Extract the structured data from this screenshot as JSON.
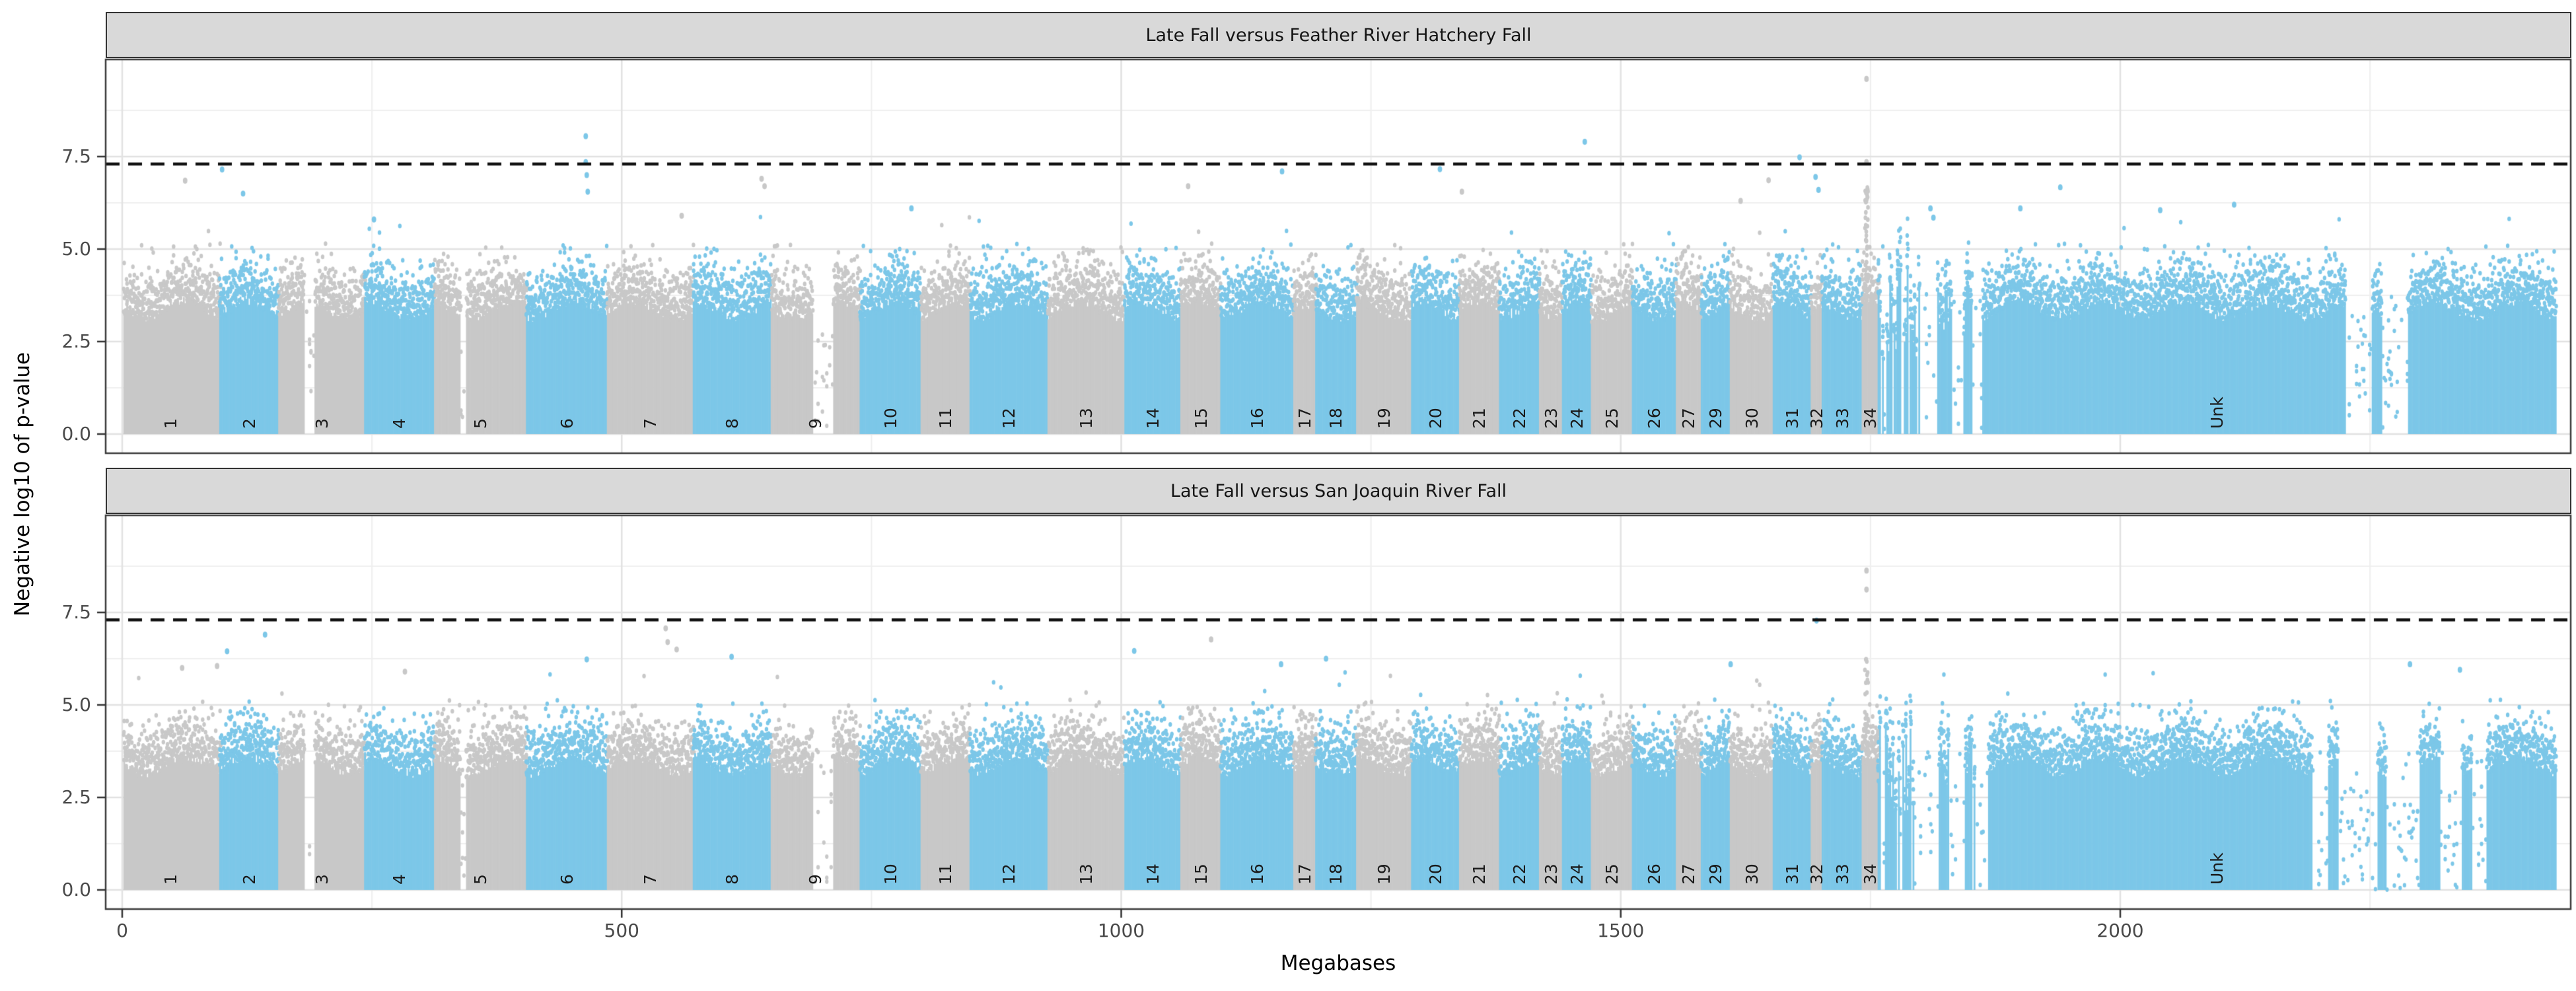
{
  "figure": {
    "y_axis": {
      "label": "Negative log10 of p-value",
      "ticks": [
        "0.0",
        "2.5",
        "5.0",
        "7.5"
      ],
      "tick_values": [
        0,
        2.5,
        5,
        7.5
      ]
    },
    "x_axis": {
      "label": "Megabases",
      "ticks": [
        "0",
        "500",
        "1000",
        "1500",
        "2000"
      ],
      "tick_values": [
        0,
        500,
        1000,
        1500,
        2000
      ],
      "minor_tick_values": [
        250,
        750,
        1250,
        1750,
        2250
      ]
    }
  },
  "chart_data": {
    "type": "scatter",
    "subtype": "manhattan",
    "x_unit": "Mb",
    "x_range": [
      0,
      2436
    ],
    "y_range": [
      0,
      9.7
    ],
    "grid": "on",
    "threshold_line": {
      "value": 7.3,
      "style": "dashed",
      "color": "#111111"
    },
    "point_colors": {
      "gray": "#c8c8c8",
      "blue": "#7cc7e8"
    },
    "chromosomes": [
      {
        "label": "1",
        "start": 0,
        "end": 98,
        "color": "gray"
      },
      {
        "label": "2",
        "start": 98,
        "end": 157,
        "color": "blue"
      },
      {
        "label": "3",
        "start": 157,
        "end": 243,
        "color": "gray"
      },
      {
        "label": "4",
        "start": 243,
        "end": 313,
        "color": "blue"
      },
      {
        "label": "5",
        "start": 313,
        "end": 405,
        "color": "gray"
      },
      {
        "label": "6",
        "start": 405,
        "end": 486,
        "color": "blue"
      },
      {
        "label": "7",
        "start": 486,
        "end": 572,
        "color": "gray"
      },
      {
        "label": "8",
        "start": 572,
        "end": 650,
        "color": "blue"
      },
      {
        "label": "9",
        "start": 650,
        "end": 739,
        "color": "gray"
      },
      {
        "label": "10",
        "start": 739,
        "end": 800,
        "color": "blue"
      },
      {
        "label": "11",
        "start": 800,
        "end": 849,
        "color": "gray"
      },
      {
        "label": "12",
        "start": 849,
        "end": 927,
        "color": "blue"
      },
      {
        "label": "13",
        "start": 927,
        "end": 1004,
        "color": "gray"
      },
      {
        "label": "14",
        "start": 1004,
        "end": 1060,
        "color": "blue"
      },
      {
        "label": "15",
        "start": 1060,
        "end": 1100,
        "color": "gray"
      },
      {
        "label": "16",
        "start": 1100,
        "end": 1173,
        "color": "blue"
      },
      {
        "label": "17",
        "start": 1173,
        "end": 1195,
        "color": "gray"
      },
      {
        "label": "18",
        "start": 1195,
        "end": 1236,
        "color": "blue"
      },
      {
        "label": "19",
        "start": 1236,
        "end": 1291,
        "color": "gray"
      },
      {
        "label": "20",
        "start": 1291,
        "end": 1339,
        "color": "blue"
      },
      {
        "label": "21",
        "start": 1339,
        "end": 1379,
        "color": "gray"
      },
      {
        "label": "22",
        "start": 1379,
        "end": 1419,
        "color": "blue"
      },
      {
        "label": "23",
        "start": 1419,
        "end": 1442,
        "color": "gray"
      },
      {
        "label": "24",
        "start": 1442,
        "end": 1471,
        "color": "blue"
      },
      {
        "label": "25",
        "start": 1471,
        "end": 1512,
        "color": "gray"
      },
      {
        "label": "26",
        "start": 1512,
        "end": 1556,
        "color": "blue"
      },
      {
        "label": "27",
        "start": 1556,
        "end": 1581,
        "color": "gray"
      },
      {
        "label": "29",
        "start": 1581,
        "end": 1610,
        "color": "blue"
      },
      {
        "label": "30",
        "start": 1610,
        "end": 1653,
        "color": "gray"
      },
      {
        "label": "31",
        "start": 1653,
        "end": 1691,
        "color": "blue"
      },
      {
        "label": "32",
        "start": 1691,
        "end": 1702,
        "color": "gray"
      },
      {
        "label": "33",
        "start": 1702,
        "end": 1742,
        "color": "blue"
      },
      {
        "label": "34",
        "start": 1742,
        "end": 1758,
        "color": "gray"
      },
      {
        "label": "Unk",
        "start": 1758,
        "end": 2436,
        "color": "blue"
      }
    ],
    "shared_gaps": [
      [
        182,
        192
      ],
      [
        339,
        344
      ],
      [
        692,
        712
      ]
    ],
    "panels": [
      {
        "strip_label": "Late Fall versus Feather River Hatchery Fall",
        "max_point": 9.6,
        "gaps": [
          [
            1800,
            1815
          ],
          [
            1832,
            1842
          ],
          [
            1852,
            1862
          ],
          [
            2226,
            2252
          ],
          [
            2262,
            2288
          ]
        ],
        "ragged_zones": [
          [
            1758,
            1805,
            0.22
          ],
          [
            1805,
            1862,
            0.1
          ]
        ],
        "spike": {
          "mb": 1746,
          "color": "gray",
          "dense_range": [
            3.4,
            6.9
          ],
          "count": 35,
          "outliers": [
            7.35,
            9.6
          ]
        },
        "peaks": [
          {
            "mb": 63,
            "v": 6.85,
            "color": "gray"
          },
          {
            "mb": 100,
            "v": 7.15,
            "color": "blue"
          },
          {
            "mb": 121,
            "v": 6.5,
            "color": "blue"
          },
          {
            "mb": 252,
            "v": 5.8,
            "color": "blue"
          },
          {
            "mb": 464,
            "v": 8.05,
            "color": "blue"
          },
          {
            "mb": 464,
            "v": 7.35,
            "color": "blue"
          },
          {
            "mb": 465,
            "v": 7.0,
            "color": "blue"
          },
          {
            "mb": 466,
            "v": 6.55,
            "color": "blue"
          },
          {
            "mb": 560,
            "v": 5.9,
            "color": "gray"
          },
          {
            "mb": 640,
            "v": 6.9,
            "color": "gray"
          },
          {
            "mb": 643,
            "v": 6.7,
            "color": "gray"
          },
          {
            "mb": 790,
            "v": 6.1,
            "color": "blue"
          },
          {
            "mb": 1067,
            "v": 6.7,
            "color": "gray"
          },
          {
            "mb": 1161,
            "v": 7.1,
            "color": "blue"
          },
          {
            "mb": 1319,
            "v": 7.16,
            "color": "blue"
          },
          {
            "mb": 1341,
            "v": 6.55,
            "color": "gray"
          },
          {
            "mb": 1464,
            "v": 7.9,
            "color": "blue"
          },
          {
            "mb": 1620,
            "v": 6.3,
            "color": "gray"
          },
          {
            "mb": 1648,
            "v": 6.86,
            "color": "gray"
          },
          {
            "mb": 1679,
            "v": 7.48,
            "color": "blue"
          },
          {
            "mb": 1695,
            "v": 6.95,
            "color": "blue"
          },
          {
            "mb": 1698,
            "v": 6.6,
            "color": "blue"
          },
          {
            "mb": 1810,
            "v": 6.1,
            "color": "blue"
          },
          {
            "mb": 1813,
            "v": 5.85,
            "color": "blue"
          },
          {
            "mb": 1900,
            "v": 6.1,
            "color": "blue"
          },
          {
            "mb": 1940,
            "v": 6.67,
            "color": "blue"
          },
          {
            "mb": 2040,
            "v": 6.05,
            "color": "blue"
          },
          {
            "mb": 2114,
            "v": 6.2,
            "color": "blue"
          }
        ]
      },
      {
        "strip_label": "Late Fall versus San Joaquin River Fall",
        "max_point": 8.63,
        "gaps": [
          [
            1795,
            1818
          ],
          [
            1830,
            1845
          ],
          [
            1855,
            1868
          ],
          [
            2192,
            2208
          ],
          [
            2218,
            2258
          ],
          [
            2266,
            2300
          ],
          [
            2320,
            2342
          ],
          [
            2352,
            2366
          ]
        ],
        "ragged_zones": [
          [
            1758,
            1810,
            0.25
          ],
          [
            1810,
            1868,
            0.12
          ]
        ],
        "spike": {
          "mb": 1746,
          "color": "gray",
          "dense_range": [
            3.4,
            6.35
          ],
          "count": 28,
          "outliers": [
            8.12,
            8.63
          ]
        },
        "peaks": [
          {
            "mb": 60,
            "v": 6.0,
            "color": "gray"
          },
          {
            "mb": 95,
            "v": 6.05,
            "color": "gray"
          },
          {
            "mb": 105,
            "v": 6.45,
            "color": "blue"
          },
          {
            "mb": 143,
            "v": 6.9,
            "color": "blue"
          },
          {
            "mb": 283,
            "v": 5.9,
            "color": "gray"
          },
          {
            "mb": 465,
            "v": 6.23,
            "color": "blue"
          },
          {
            "mb": 544,
            "v": 7.07,
            "color": "gray"
          },
          {
            "mb": 546,
            "v": 6.7,
            "color": "gray"
          },
          {
            "mb": 555,
            "v": 6.5,
            "color": "gray"
          },
          {
            "mb": 610,
            "v": 6.3,
            "color": "blue"
          },
          {
            "mb": 1013,
            "v": 6.46,
            "color": "blue"
          },
          {
            "mb": 1090,
            "v": 6.77,
            "color": "gray"
          },
          {
            "mb": 1160,
            "v": 6.1,
            "color": "blue"
          },
          {
            "mb": 1205,
            "v": 6.25,
            "color": "blue"
          },
          {
            "mb": 1610,
            "v": 6.1,
            "color": "blue"
          },
          {
            "mb": 1696,
            "v": 7.28,
            "color": "blue"
          },
          {
            "mb": 2290,
            "v": 6.1,
            "color": "blue"
          },
          {
            "mb": 2340,
            "v": 5.95,
            "color": "blue"
          }
        ]
      }
    ]
  }
}
